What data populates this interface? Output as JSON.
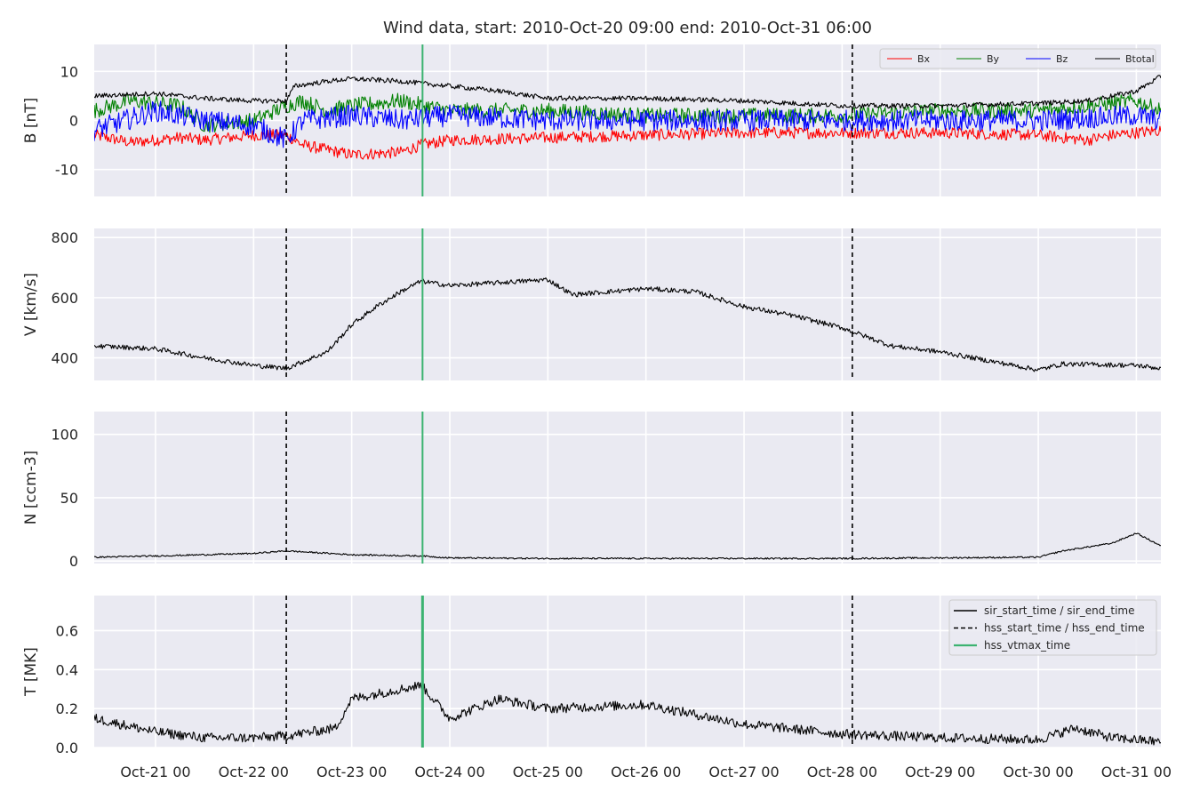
{
  "chart_data": {
    "type": "line",
    "title": "Wind data, start: 2010-Oct-20 09:00  end: 2010-Oct-31 06:00",
    "x_range": [
      "2010-10-20 09:00",
      "2010-10-31 06:00"
    ],
    "x_ticks": [
      {
        "label": "Oct-21 00",
        "time": "2010-10-21 00:00"
      },
      {
        "label": "Oct-22 00",
        "time": "2010-10-22 00:00"
      },
      {
        "label": "Oct-23 00",
        "time": "2010-10-23 00:00"
      },
      {
        "label": "Oct-24 00",
        "time": "2010-10-24 00:00"
      },
      {
        "label": "Oct-25 00",
        "time": "2010-10-25 00:00"
      },
      {
        "label": "Oct-26 00",
        "time": "2010-10-26 00:00"
      },
      {
        "label": "Oct-27 00",
        "time": "2010-10-27 00:00"
      },
      {
        "label": "Oct-28 00",
        "time": "2010-10-28 00:00"
      },
      {
        "label": "Oct-29 00",
        "time": "2010-10-29 00:00"
      },
      {
        "label": "Oct-30 00",
        "time": "2010-10-30 00:00"
      },
      {
        "label": "Oct-31 00",
        "time": "2010-10-31 00:00"
      }
    ],
    "grid": true,
    "event_lines": [
      {
        "time": "2010-10-22 08:00",
        "style": "dashed",
        "color": "#000000",
        "legend_index": 1
      },
      {
        "time": "2010-10-23 17:20",
        "style": "solid",
        "color": "#3cb371",
        "legend_index": 2
      },
      {
        "time": "2010-10-28 02:30",
        "style": "dashed",
        "color": "#000000",
        "legend_index": 1
      }
    ],
    "panels": [
      {
        "ylabel": "B [nT]",
        "ylim": [
          -15.5,
          15.5
        ],
        "yticks": [
          -10,
          0,
          10
        ],
        "legend": {
          "placement": "top-right",
          "entries": [
            {
              "name": "Bx",
              "color": "#ff0000"
            },
            {
              "name": "By",
              "color": "#008000"
            },
            {
              "name": "Bz",
              "color": "#0000ff"
            },
            {
              "name": "Btotal",
              "color": "#000000"
            }
          ]
        },
        "series": [
          {
            "name": "Bx",
            "color": "#ff0000",
            "noise": 1.2,
            "points": [
              [
                "2010-10-20 09:00",
                -3
              ],
              [
                "2010-10-20 18:00",
                -4.5
              ],
              [
                "2010-10-21 06:00",
                -3.5
              ],
              [
                "2010-10-21 12:00",
                -4
              ],
              [
                "2010-10-22 00:00",
                -3
              ],
              [
                "2010-10-22 08:00",
                -3
              ],
              [
                "2010-10-22 12:00",
                -5
              ],
              [
                "2010-10-22 18:00",
                -6
              ],
              [
                "2010-10-23 00:00",
                -7
              ],
              [
                "2010-10-23 12:00",
                -6.5
              ],
              [
                "2010-10-23 17:00",
                -5
              ],
              [
                "2010-10-24 00:00",
                -4
              ],
              [
                "2010-10-25 00:00",
                -3.5
              ],
              [
                "2010-10-26 00:00",
                -3
              ],
              [
                "2010-10-27 00:00",
                -2.5
              ],
              [
                "2010-10-28 00:00",
                -2.5
              ],
              [
                "2010-10-29 00:00",
                -2.5
              ],
              [
                "2010-10-30 00:00",
                -3
              ],
              [
                "2010-10-30 12:00",
                -4
              ],
              [
                "2010-10-30 18:00",
                -3
              ],
              [
                "2010-10-31 06:00",
                -2
              ]
            ]
          },
          {
            "name": "By",
            "color": "#008000",
            "noise": 1.6,
            "points": [
              [
                "2010-10-20 09:00",
                2
              ],
              [
                "2010-10-20 18:00",
                4
              ],
              [
                "2010-10-21 06:00",
                3
              ],
              [
                "2010-10-21 12:00",
                -1
              ],
              [
                "2010-10-22 00:00",
                0
              ],
              [
                "2010-10-22 08:00",
                3
              ],
              [
                "2010-10-22 12:00",
                4
              ],
              [
                "2010-10-22 18:00",
                2
              ],
              [
                "2010-10-23 00:00",
                3
              ],
              [
                "2010-10-23 12:00",
                4
              ],
              [
                "2010-10-24 00:00",
                2
              ],
              [
                "2010-10-25 00:00",
                2
              ],
              [
                "2010-10-26 00:00",
                1
              ],
              [
                "2010-10-27 00:00",
                1
              ],
              [
                "2010-10-28 00:00",
                1
              ],
              [
                "2010-10-29 00:00",
                2
              ],
              [
                "2010-10-30 00:00",
                2
              ],
              [
                "2010-10-30 12:00",
                3
              ],
              [
                "2010-10-31 00:00",
                4
              ],
              [
                "2010-10-31 06:00",
                2
              ]
            ]
          },
          {
            "name": "Bz",
            "color": "#0000ff",
            "noise": 2.2,
            "points": [
              [
                "2010-10-20 09:00",
                -2
              ],
              [
                "2010-10-21 00:00",
                2
              ],
              [
                "2010-10-21 12:00",
                0
              ],
              [
                "2010-10-22 00:00",
                -1
              ],
              [
                "2010-10-22 08:00",
                -4
              ],
              [
                "2010-10-22 12:00",
                0
              ],
              [
                "2010-10-23 00:00",
                1
              ],
              [
                "2010-10-23 12:00",
                0
              ],
              [
                "2010-10-24 00:00",
                1
              ],
              [
                "2010-10-25 00:00",
                0
              ],
              [
                "2010-10-26 00:00",
                0
              ],
              [
                "2010-10-27 00:00",
                0
              ],
              [
                "2010-10-28 00:00",
                0
              ],
              [
                "2010-10-29 00:00",
                0
              ],
              [
                "2010-10-30 00:00",
                0
              ],
              [
                "2010-10-31 00:00",
                1
              ],
              [
                "2010-10-31 06:00",
                0
              ]
            ]
          },
          {
            "name": "Btotal",
            "color": "#000000",
            "noise": 0.5,
            "points": [
              [
                "2010-10-20 09:00",
                5
              ],
              [
                "2010-10-21 00:00",
                5.5
              ],
              [
                "2010-10-21 12:00",
                4.5
              ],
              [
                "2010-10-22 00:00",
                4
              ],
              [
                "2010-10-22 08:00",
                4
              ],
              [
                "2010-10-22 10:00",
                7
              ],
              [
                "2010-10-22 18:00",
                8
              ],
              [
                "2010-10-23 00:00",
                8.5
              ],
              [
                "2010-10-23 12:00",
                8
              ],
              [
                "2010-10-24 00:00",
                7
              ],
              [
                "2010-10-24 12:00",
                6
              ],
              [
                "2010-10-25 00:00",
                4.5
              ],
              [
                "2010-10-26 00:00",
                4.5
              ],
              [
                "2010-10-27 00:00",
                4
              ],
              [
                "2010-10-28 00:00",
                3
              ],
              [
                "2010-10-29 00:00",
                3
              ],
              [
                "2010-10-30 00:00",
                3.5
              ],
              [
                "2010-10-30 12:00",
                4
              ],
              [
                "2010-10-31 00:00",
                6
              ],
              [
                "2010-10-31 06:00",
                9
              ]
            ]
          }
        ]
      },
      {
        "ylabel": "V [km/s]",
        "ylim": [
          325,
          830
        ],
        "yticks": [
          400,
          600,
          800
        ],
        "series": [
          {
            "name": "",
            "color": "#000000",
            "noise": 8,
            "points": [
              [
                "2010-10-20 09:00",
                440
              ],
              [
                "2010-10-21 00:00",
                430
              ],
              [
                "2010-10-21 12:00",
                400
              ],
              [
                "2010-10-22 00:00",
                375
              ],
              [
                "2010-10-22 08:00",
                365
              ],
              [
                "2010-10-22 18:00",
                420
              ],
              [
                "2010-10-23 00:00",
                510
              ],
              [
                "2010-10-23 06:00",
                570
              ],
              [
                "2010-10-23 12:00",
                620
              ],
              [
                "2010-10-23 17:00",
                655
              ],
              [
                "2010-10-24 00:00",
                640
              ],
              [
                "2010-10-24 12:00",
                650
              ],
              [
                "2010-10-25 00:00",
                660
              ],
              [
                "2010-10-25 06:00",
                610
              ],
              [
                "2010-10-26 00:00",
                630
              ],
              [
                "2010-10-26 12:00",
                620
              ],
              [
                "2010-10-27 00:00",
                570
              ],
              [
                "2010-10-27 12:00",
                540
              ],
              [
                "2010-10-28 00:00",
                500
              ],
              [
                "2010-10-28 06:00",
                470
              ],
              [
                "2010-10-28 12:00",
                440
              ],
              [
                "2010-10-29 00:00",
                420
              ],
              [
                "2010-10-29 12:00",
                390
              ],
              [
                "2010-10-30 00:00",
                360
              ],
              [
                "2010-10-30 06:00",
                380
              ],
              [
                "2010-10-31 00:00",
                375
              ],
              [
                "2010-10-31 06:00",
                365
              ]
            ]
          }
        ]
      },
      {
        "ylabel": "N [ccm-3]",
        "ylim": [
          -2,
          118
        ],
        "yticks": [
          0,
          50,
          100
        ],
        "series": [
          {
            "name": "",
            "color": "#000000",
            "noise": 0.6,
            "points": [
              [
                "2010-10-20 09:00",
                3
              ],
              [
                "2010-10-21 00:00",
                4
              ],
              [
                "2010-10-22 00:00",
                6
              ],
              [
                "2010-10-22 08:00",
                8
              ],
              [
                "2010-10-23 00:00",
                5
              ],
              [
                "2010-10-23 17:00",
                4
              ],
              [
                "2010-10-24 00:00",
                2.5
              ],
              [
                "2010-10-25 00:00",
                2
              ],
              [
                "2010-10-28 00:00",
                2
              ],
              [
                "2010-10-30 00:00",
                3
              ],
              [
                "2010-10-30 06:00",
                8
              ],
              [
                "2010-10-30 18:00",
                14
              ],
              [
                "2010-10-31 00:00",
                22
              ],
              [
                "2010-10-31 06:00",
                12
              ]
            ]
          }
        ]
      },
      {
        "ylabel": "T [MK]",
        "ylim": [
          0,
          0.78
        ],
        "yticks": [
          0.0,
          0.2,
          0.4,
          0.6
        ],
        "legend": {
          "placement": "top-right",
          "entries": [
            {
              "name": "sir_start_time / sir_end_time",
              "color": "#000000",
              "style": "solid"
            },
            {
              "name": "hss_start_time / hss_end_time",
              "color": "#000000",
              "style": "dashed"
            },
            {
              "name": "hss_vtmax_time",
              "color": "#3cb371",
              "style": "solid"
            }
          ]
        },
        "series": [
          {
            "name": "",
            "color": "#000000",
            "noise": 0.025,
            "points": [
              [
                "2010-10-20 09:00",
                0.15
              ],
              [
                "2010-10-21 00:00",
                0.08
              ],
              [
                "2010-10-21 12:00",
                0.05
              ],
              [
                "2010-10-22 00:00",
                0.05
              ],
              [
                "2010-10-22 08:00",
                0.06
              ],
              [
                "2010-10-22 20:00",
                0.1
              ],
              [
                "2010-10-23 00:00",
                0.25
              ],
              [
                "2010-10-23 12:00",
                0.3
              ],
              [
                "2010-10-23 17:00",
                0.32
              ],
              [
                "2010-10-24 00:00",
                0.15
              ],
              [
                "2010-10-24 12:00",
                0.25
              ],
              [
                "2010-10-25 00:00",
                0.2
              ],
              [
                "2010-10-26 00:00",
                0.22
              ],
              [
                "2010-10-27 00:00",
                0.12
              ],
              [
                "2010-10-28 00:00",
                0.07
              ],
              [
                "2010-10-29 00:00",
                0.05
              ],
              [
                "2010-10-30 00:00",
                0.04
              ],
              [
                "2010-10-30 09:00",
                0.1
              ],
              [
                "2010-10-30 18:00",
                0.05
              ],
              [
                "2010-10-31 06:00",
                0.03
              ]
            ]
          }
        ]
      }
    ]
  }
}
